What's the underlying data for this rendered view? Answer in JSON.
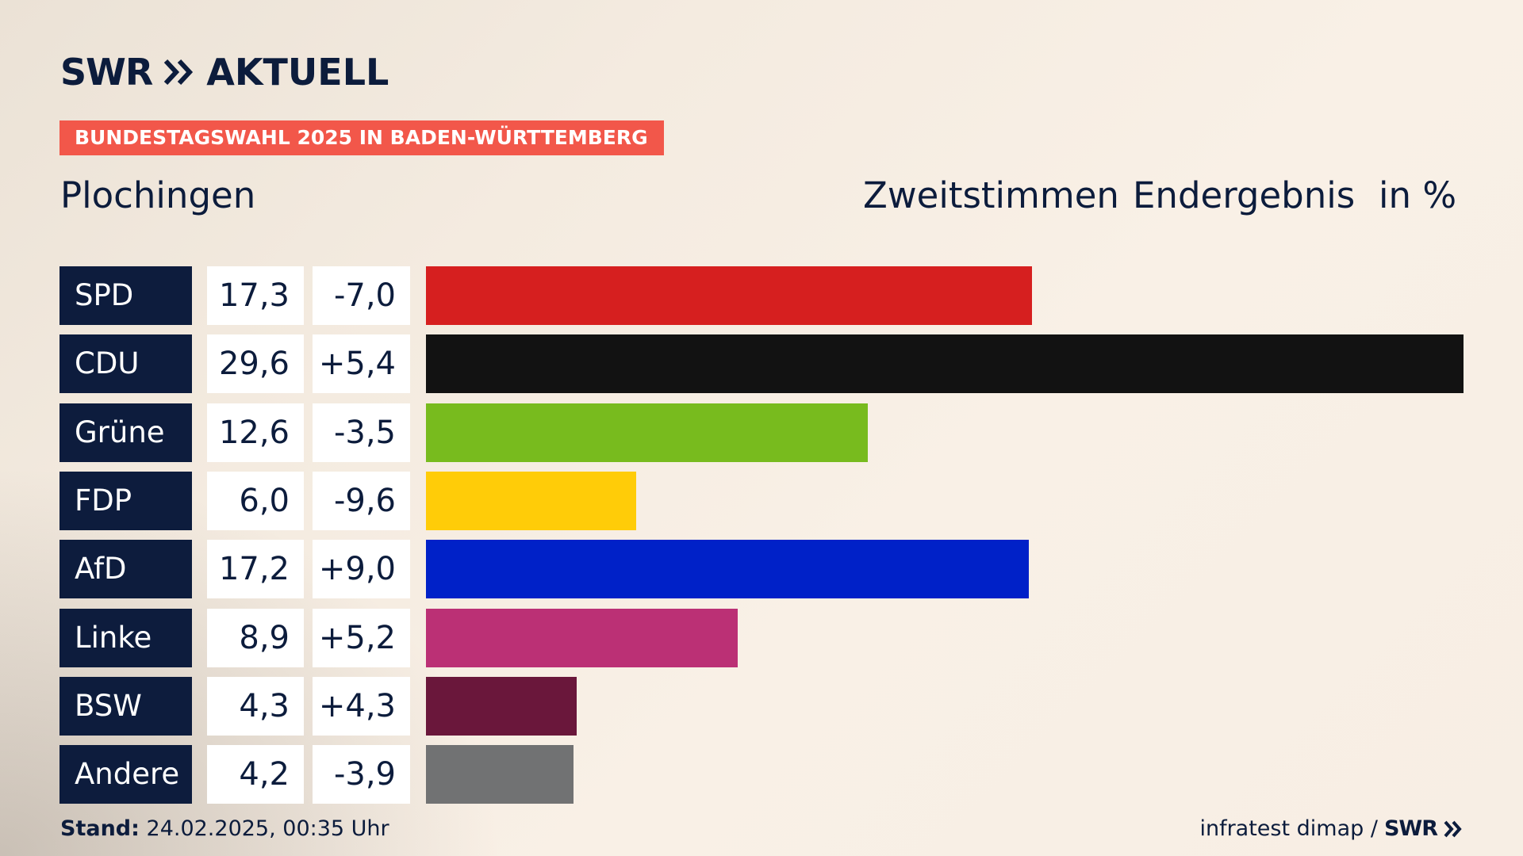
{
  "logo": {
    "brand": "SWR",
    "sub": "AKTUELL"
  },
  "banner": "BUNDESTAGSWAHL 2025 IN BADEN-WÜRTTEMBERG",
  "place": "Plochingen",
  "header": {
    "vote": "Zweitstimmen",
    "status": "Endergebnis",
    "unit": "in %"
  },
  "colors": {
    "navy": "#0d1c3d",
    "banner": "#f2574a"
  },
  "chart_data": {
    "type": "bar",
    "categories": [
      "SPD",
      "CDU",
      "Grüne",
      "FDP",
      "AfD",
      "Linke",
      "BSW",
      "Andere"
    ],
    "values": [
      17.3,
      29.6,
      12.6,
      6.0,
      17.2,
      8.9,
      4.3,
      4.2
    ],
    "values_label": [
      "17,3",
      "29,6",
      "12,6",
      "6,0",
      "17,2",
      "8,9",
      "4,3",
      "4,2"
    ],
    "diffs": [
      -7.0,
      5.4,
      -3.5,
      -9.6,
      9.0,
      5.2,
      4.3,
      -3.9
    ],
    "diffs_label": [
      "-7,0",
      "+5,4",
      "-3,5",
      "-9,6",
      "+9,0",
      "+5,2",
      "+4,3",
      "-3,9"
    ],
    "colors": [
      "#d61f1f",
      "#121212",
      "#78bb1e",
      "#ffcc08",
      "#0021c8",
      "#bb3075",
      "#6a173b",
      "#717273"
    ],
    "xlim": [
      0,
      29.6
    ]
  },
  "footer": {
    "stand_label": "Stand:",
    "stand_value": "24.02.2025, 00:35 Uhr",
    "source": "infratest dimap /",
    "source_brand": "SWR"
  }
}
